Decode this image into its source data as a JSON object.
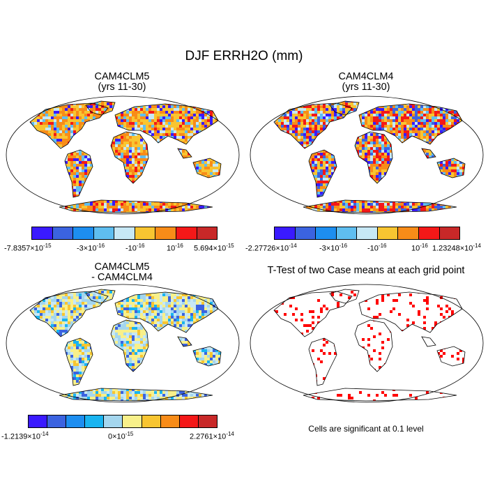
{
  "title": "DJF ERRH2O (mm)",
  "panels": [
    {
      "name": "CAM4CLM5",
      "line1": "CAM4CLM5",
      "line2": "(yrs 11-30)"
    },
    {
      "name": "CAM4CLM4",
      "line1": "CAM4CLM4",
      "line2": "(yrs 11-30)"
    },
    {
      "name": "diff",
      "line1": "CAM4CLM5",
      "line2": "- CAM4CLM4"
    },
    {
      "name": "ttest",
      "line1": "T-Test of two Case means at each grid point",
      "line2": ""
    }
  ],
  "colorbars": {
    "panel1": {
      "colors": [
        "#3a1aff",
        "#3b63e0",
        "#1d8ef0",
        "#5fbef0",
        "#c7e8f5",
        "#f8c531",
        "#f88c18",
        "#f41818",
        "#c82828"
      ],
      "labels": [
        {
          "base": "-7.8357",
          "exp": "-15",
          "text": "-7.8357×10"
        },
        {
          "base": "-3",
          "exp": "-16",
          "text": "-3×10"
        },
        {
          "base": "-",
          "exp": "-16",
          "text": "-10"
        },
        {
          "base": "",
          "exp": "-16",
          "text": "10"
        },
        {
          "base": "5.694",
          "exp": "-15",
          "text": "5.694×10"
        }
      ]
    },
    "panel2": {
      "colors": [
        "#3a1aff",
        "#3b63e0",
        "#1d8ef0",
        "#5fbef0",
        "#c7e8f5",
        "#f8c531",
        "#f88c18",
        "#f41818",
        "#c82828"
      ],
      "labels": [
        {
          "exp": "-14",
          "text": "-2.27726×10"
        },
        {
          "exp": "-16",
          "text": "-3×10"
        },
        {
          "exp": "-16",
          "text": "-10"
        },
        {
          "exp": "-16",
          "text": "10"
        },
        {
          "exp": "-14",
          "text": "1.23248×10"
        }
      ]
    },
    "panel3": {
      "colors": [
        "#3a1aff",
        "#3b63e0",
        "#1d8ef0",
        "#19b4f0",
        "#a4d6ee",
        "#f8f08a",
        "#f8c531",
        "#f88c18",
        "#f41818",
        "#c82828"
      ],
      "labels": [
        {
          "exp": "-14",
          "text": "-1.2139×10"
        },
        {
          "exp": "-15",
          "text": "0×10"
        },
        {
          "exp": "-14",
          "text": "2.2761×10"
        }
      ]
    }
  },
  "caption": "Cells are significant at 0.1 level",
  "map_palettes": {
    "panel1": [
      "#f88c18",
      "#f8c531",
      "#f88c18",
      "#f8c531",
      "#f41818",
      "#c7e8f5",
      "#f88c18",
      "#3a1aff",
      "#f8c531",
      "#5fbef0"
    ],
    "panel2": [
      "#f88c18",
      "#3a1aff",
      "#f8c531",
      "#f41818",
      "#5fbef0",
      "#c7e8f5",
      "#f88c18",
      "#3b63e0",
      "#f41818",
      "#f8c531"
    ],
    "panel3": [
      "#c7e8f5",
      "#f8f08a",
      "#a4d6ee",
      "#f8f08a",
      "#c7e8f5",
      "#f8c531",
      "#19b4f0",
      "#f8f08a",
      "#a4d6ee",
      "#3b63e0"
    ],
    "panel4": [
      "#ff0000"
    ]
  }
}
